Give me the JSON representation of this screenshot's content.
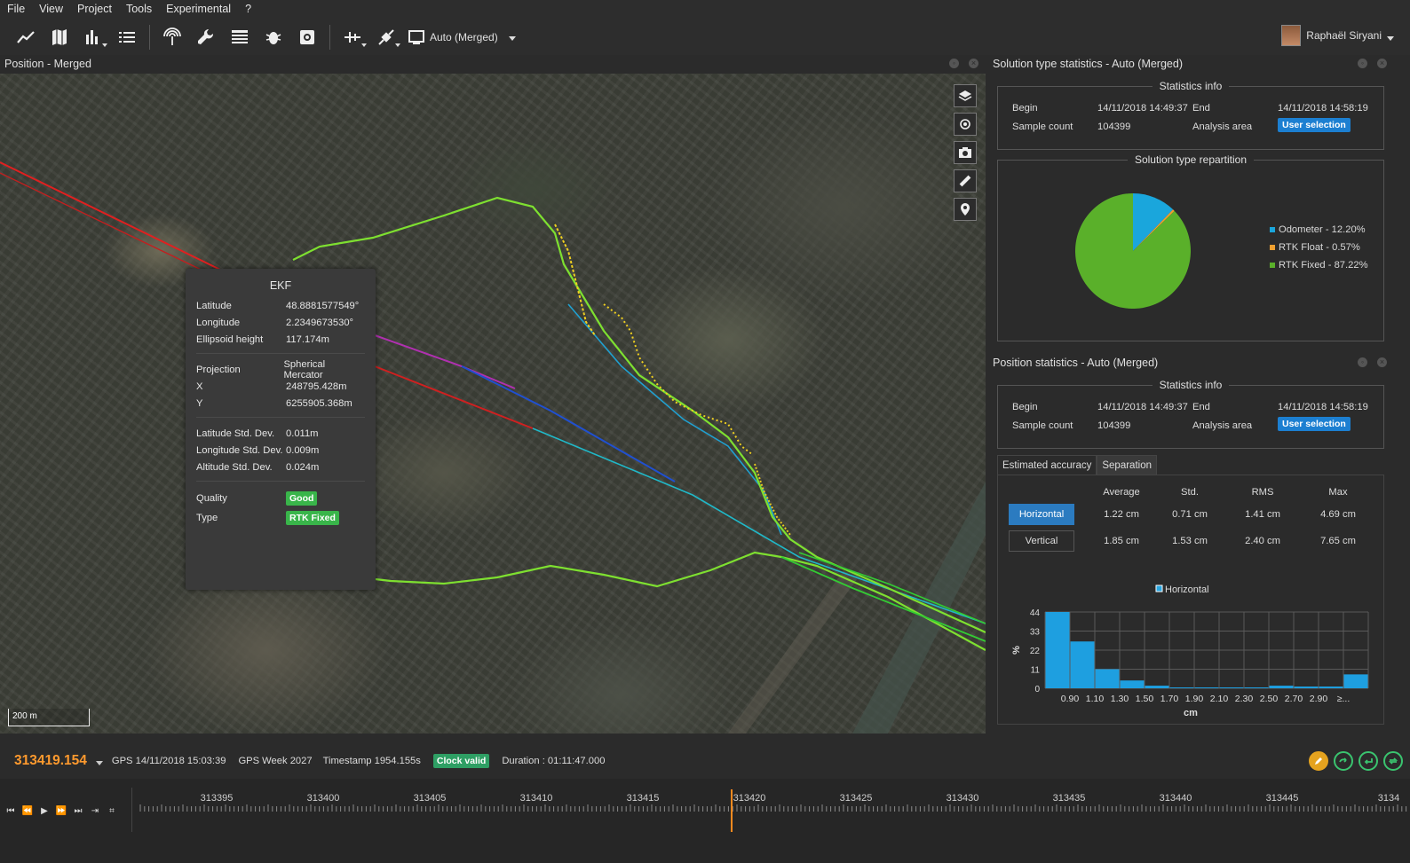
{
  "menu": [
    "File",
    "View",
    "Project",
    "Tools",
    "Experimental",
    "?"
  ],
  "toolbar": {
    "source_label": "Auto (Merged)",
    "user_name": "Raphaël Siryani"
  },
  "panels": {
    "map_title": "Position - Merged",
    "solution_title": "Solution type statistics - Auto (Merged)",
    "position_title": "Position statistics - Auto (Merged)"
  },
  "map": {
    "scale_label": "200 m"
  },
  "ekf": {
    "title": "EKF",
    "latitude_label": "Latitude",
    "latitude": "48.8881577549°",
    "longitude_label": "Longitude",
    "longitude": "2.2349673530°",
    "height_label": "Ellipsoid height",
    "height": "117.174m",
    "projection_label": "Projection",
    "projection": "Spherical Mercator",
    "x_label": "X",
    "x": "248795.428m",
    "y_label": "Y",
    "y": "6255905.368m",
    "lat_std_label": "Latitude Std. Dev.",
    "lat_std": "0.011m",
    "lon_std_label": "Longitude Std. Dev.",
    "lon_std": "0.009m",
    "alt_std_label": "Altitude Std. Dev.",
    "alt_std": "0.024m",
    "quality_label": "Quality",
    "quality": "Good",
    "type_label": "Type",
    "type": "RTK Fixed"
  },
  "solution_stats": {
    "info_title": "Statistics info",
    "begin_label": "Begin",
    "begin": "14/11/2018 14:49:37",
    "end_label": "End",
    "end": "14/11/2018 14:58:19",
    "count_label": "Sample count",
    "count": "104399",
    "area_label": "Analysis area",
    "area": "User selection",
    "repartition_title": "Solution type repartition",
    "legend": [
      {
        "label": "Odometer - 12.20%",
        "color": "#1aa6dc"
      },
      {
        "label": "RTK Float - 0.57%",
        "color": "#f0a030"
      },
      {
        "label": "RTK Fixed - 87.22%",
        "color": "#5ab02a"
      }
    ]
  },
  "position_stats": {
    "info_title": "Statistics info",
    "begin_label": "Begin",
    "begin": "14/11/2018 14:49:37",
    "end_label": "End",
    "end": "14/11/2018 14:58:19",
    "count_label": "Sample count",
    "count": "104399",
    "area_label": "Analysis area",
    "area": "User selection",
    "tabs": [
      "Estimated accuracy",
      "Separation"
    ],
    "columns": [
      "Average",
      "Std.",
      "RMS",
      "Max"
    ],
    "rows": [
      {
        "label": "Horizontal",
        "values": [
          "1.22 cm",
          "0.71 cm",
          "1.41 cm",
          "4.69 cm"
        ]
      },
      {
        "label": "Vertical",
        "values": [
          "1.85 cm",
          "1.53 cm",
          "2.40 cm",
          "7.65 cm"
        ]
      }
    ]
  },
  "chart_data": [
    {
      "type": "pie",
      "title": "Solution type repartition",
      "categories": [
        "Odometer",
        "RTK Float",
        "RTK Fixed"
      ],
      "values": [
        12.2,
        0.57,
        87.22
      ],
      "colors": [
        "#1aa6dc",
        "#f0a030",
        "#5ab02a"
      ],
      "legend": "right"
    },
    {
      "type": "bar",
      "series": [
        {
          "name": "Horizontal",
          "values": [
            44,
            27,
            11,
            4.5,
            1.5,
            0.5,
            0.5,
            0.5,
            0.5,
            1.5,
            1,
            1,
            8
          ]
        }
      ],
      "tick_labels": [
        "0.90",
        "1.10",
        "1.30",
        "1.50",
        "1.70",
        "1.90",
        "2.10",
        "2.30",
        "2.50",
        "2.70",
        "2.90",
        "≥..."
      ],
      "ytick_labels": [
        "0",
        "11",
        "22",
        "33",
        "44"
      ],
      "xlabel": "cm",
      "ylabel": "%",
      "ylim": [
        0,
        44
      ],
      "grid": true,
      "legend": "top"
    }
  ],
  "status": {
    "time": "313419.154",
    "gps": "GPS 14/11/2018 15:03:39",
    "week": "GPS Week 2027",
    "timestamp": "Timestamp 1954.155s",
    "clock": "Clock valid",
    "duration": "Duration : 01:11:47.000"
  },
  "timeline": {
    "labels": [
      "313395",
      "313400",
      "313405",
      "313410",
      "313415",
      "313420",
      "313425",
      "313430",
      "313435",
      "313440",
      "313445",
      "3134"
    ],
    "cursor_color": "#ff8a1e"
  }
}
